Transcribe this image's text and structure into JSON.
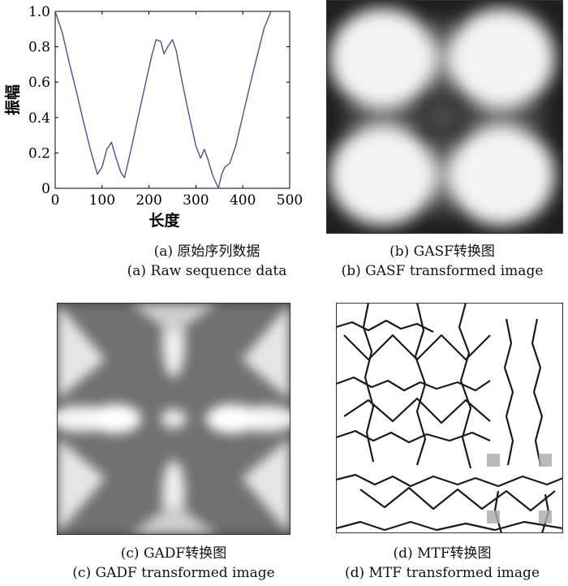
{
  "chart_data": [
    {
      "type": "line",
      "xlabel": "长度",
      "ylabel": "振幅",
      "xlim": [
        0,
        500
      ],
      "ylim": [
        0,
        1.0
      ],
      "xticks": [
        "0",
        "100",
        "200",
        "300",
        "400",
        "500"
      ],
      "yticks": [
        "0",
        "0.2",
        "0.4",
        "0.6",
        "0.8",
        "1.0"
      ],
      "grid": false,
      "line_color": "#4a4fa8",
      "x": [
        0,
        15,
        30,
        45,
        60,
        75,
        90,
        100,
        110,
        120,
        130,
        140,
        148,
        160,
        175,
        190,
        205,
        215,
        225,
        232,
        240,
        250,
        258,
        270,
        285,
        300,
        310,
        318,
        325,
        335,
        348,
        355,
        362,
        372,
        385,
        400,
        415,
        430,
        445,
        460
      ],
      "y": [
        1.0,
        0.88,
        0.71,
        0.55,
        0.38,
        0.22,
        0.08,
        0.12,
        0.22,
        0.26,
        0.17,
        0.09,
        0.06,
        0.2,
        0.38,
        0.56,
        0.74,
        0.84,
        0.83,
        0.76,
        0.8,
        0.84,
        0.78,
        0.61,
        0.42,
        0.24,
        0.17,
        0.22,
        0.17,
        0.08,
        0.0,
        0.08,
        0.12,
        0.14,
        0.24,
        0.41,
        0.58,
        0.74,
        0.9,
        1.0
      ]
    },
    {
      "type": "heatmap",
      "caption_cn": "(b) GASF转换图",
      "caption_en": "(b) GASF transformed image"
    },
    {
      "type": "heatmap",
      "caption_cn": "(c) GADF转换图",
      "caption_en": "(c) GADF transformed image"
    },
    {
      "type": "heatmap",
      "caption_cn": "(d) MTF转换图",
      "caption_en": "(d) MTF transformed image"
    }
  ],
  "captions": {
    "a_cn": "(a) 原始序列数据",
    "a_en": "(a) Raw sequence data"
  }
}
